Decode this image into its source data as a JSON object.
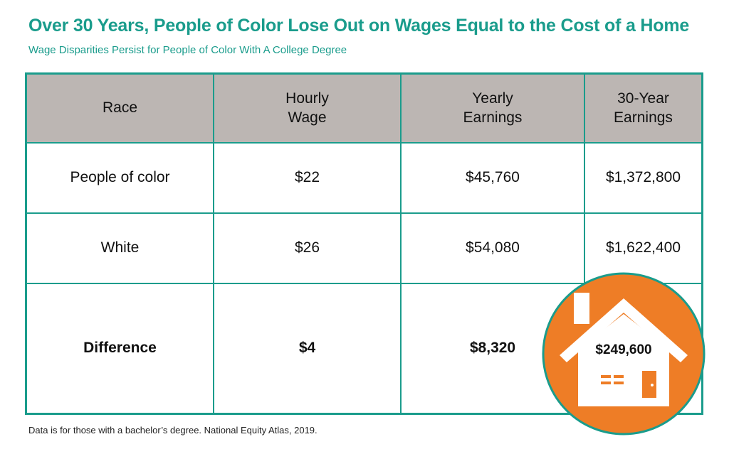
{
  "header": {
    "title": "Over 30 Years, People of Color Lose Out on Wages Equal to the Cost of a Home",
    "subtitle": "Wage Disparities Persist for People of Color With A College Degree"
  },
  "colors": {
    "accent": "#1a9c8c",
    "header_bg": "#bcb6b3",
    "badge_orange": "#ee7d26",
    "house_white": "#ffffff"
  },
  "chart_data": {
    "type": "table",
    "title": "Over 30 Years, People of Color Lose Out on Wages Equal to the Cost of a Home",
    "subtitle": "Wage Disparities Persist for People of Color With A College Degree",
    "columns": [
      "Race",
      "Hourly Wage",
      "Yearly Earnings",
      "30-Year Earnings"
    ],
    "rows": [
      {
        "race": "People of color",
        "hourly": "$22",
        "yearly": "$45,760",
        "thirty": "$1,372,800"
      },
      {
        "race": "White",
        "hourly": "$26",
        "yearly": "$54,080",
        "thirty": "$1,622,400"
      },
      {
        "race": "Difference",
        "hourly": "$4",
        "yearly": "$8,320",
        "thirty": "$249,600"
      }
    ]
  },
  "badge": {
    "icon": "house-icon",
    "value": "$249,600"
  },
  "footnote": "Data is for those with a bachelor’s degree. National Equity Atlas, 2019."
}
